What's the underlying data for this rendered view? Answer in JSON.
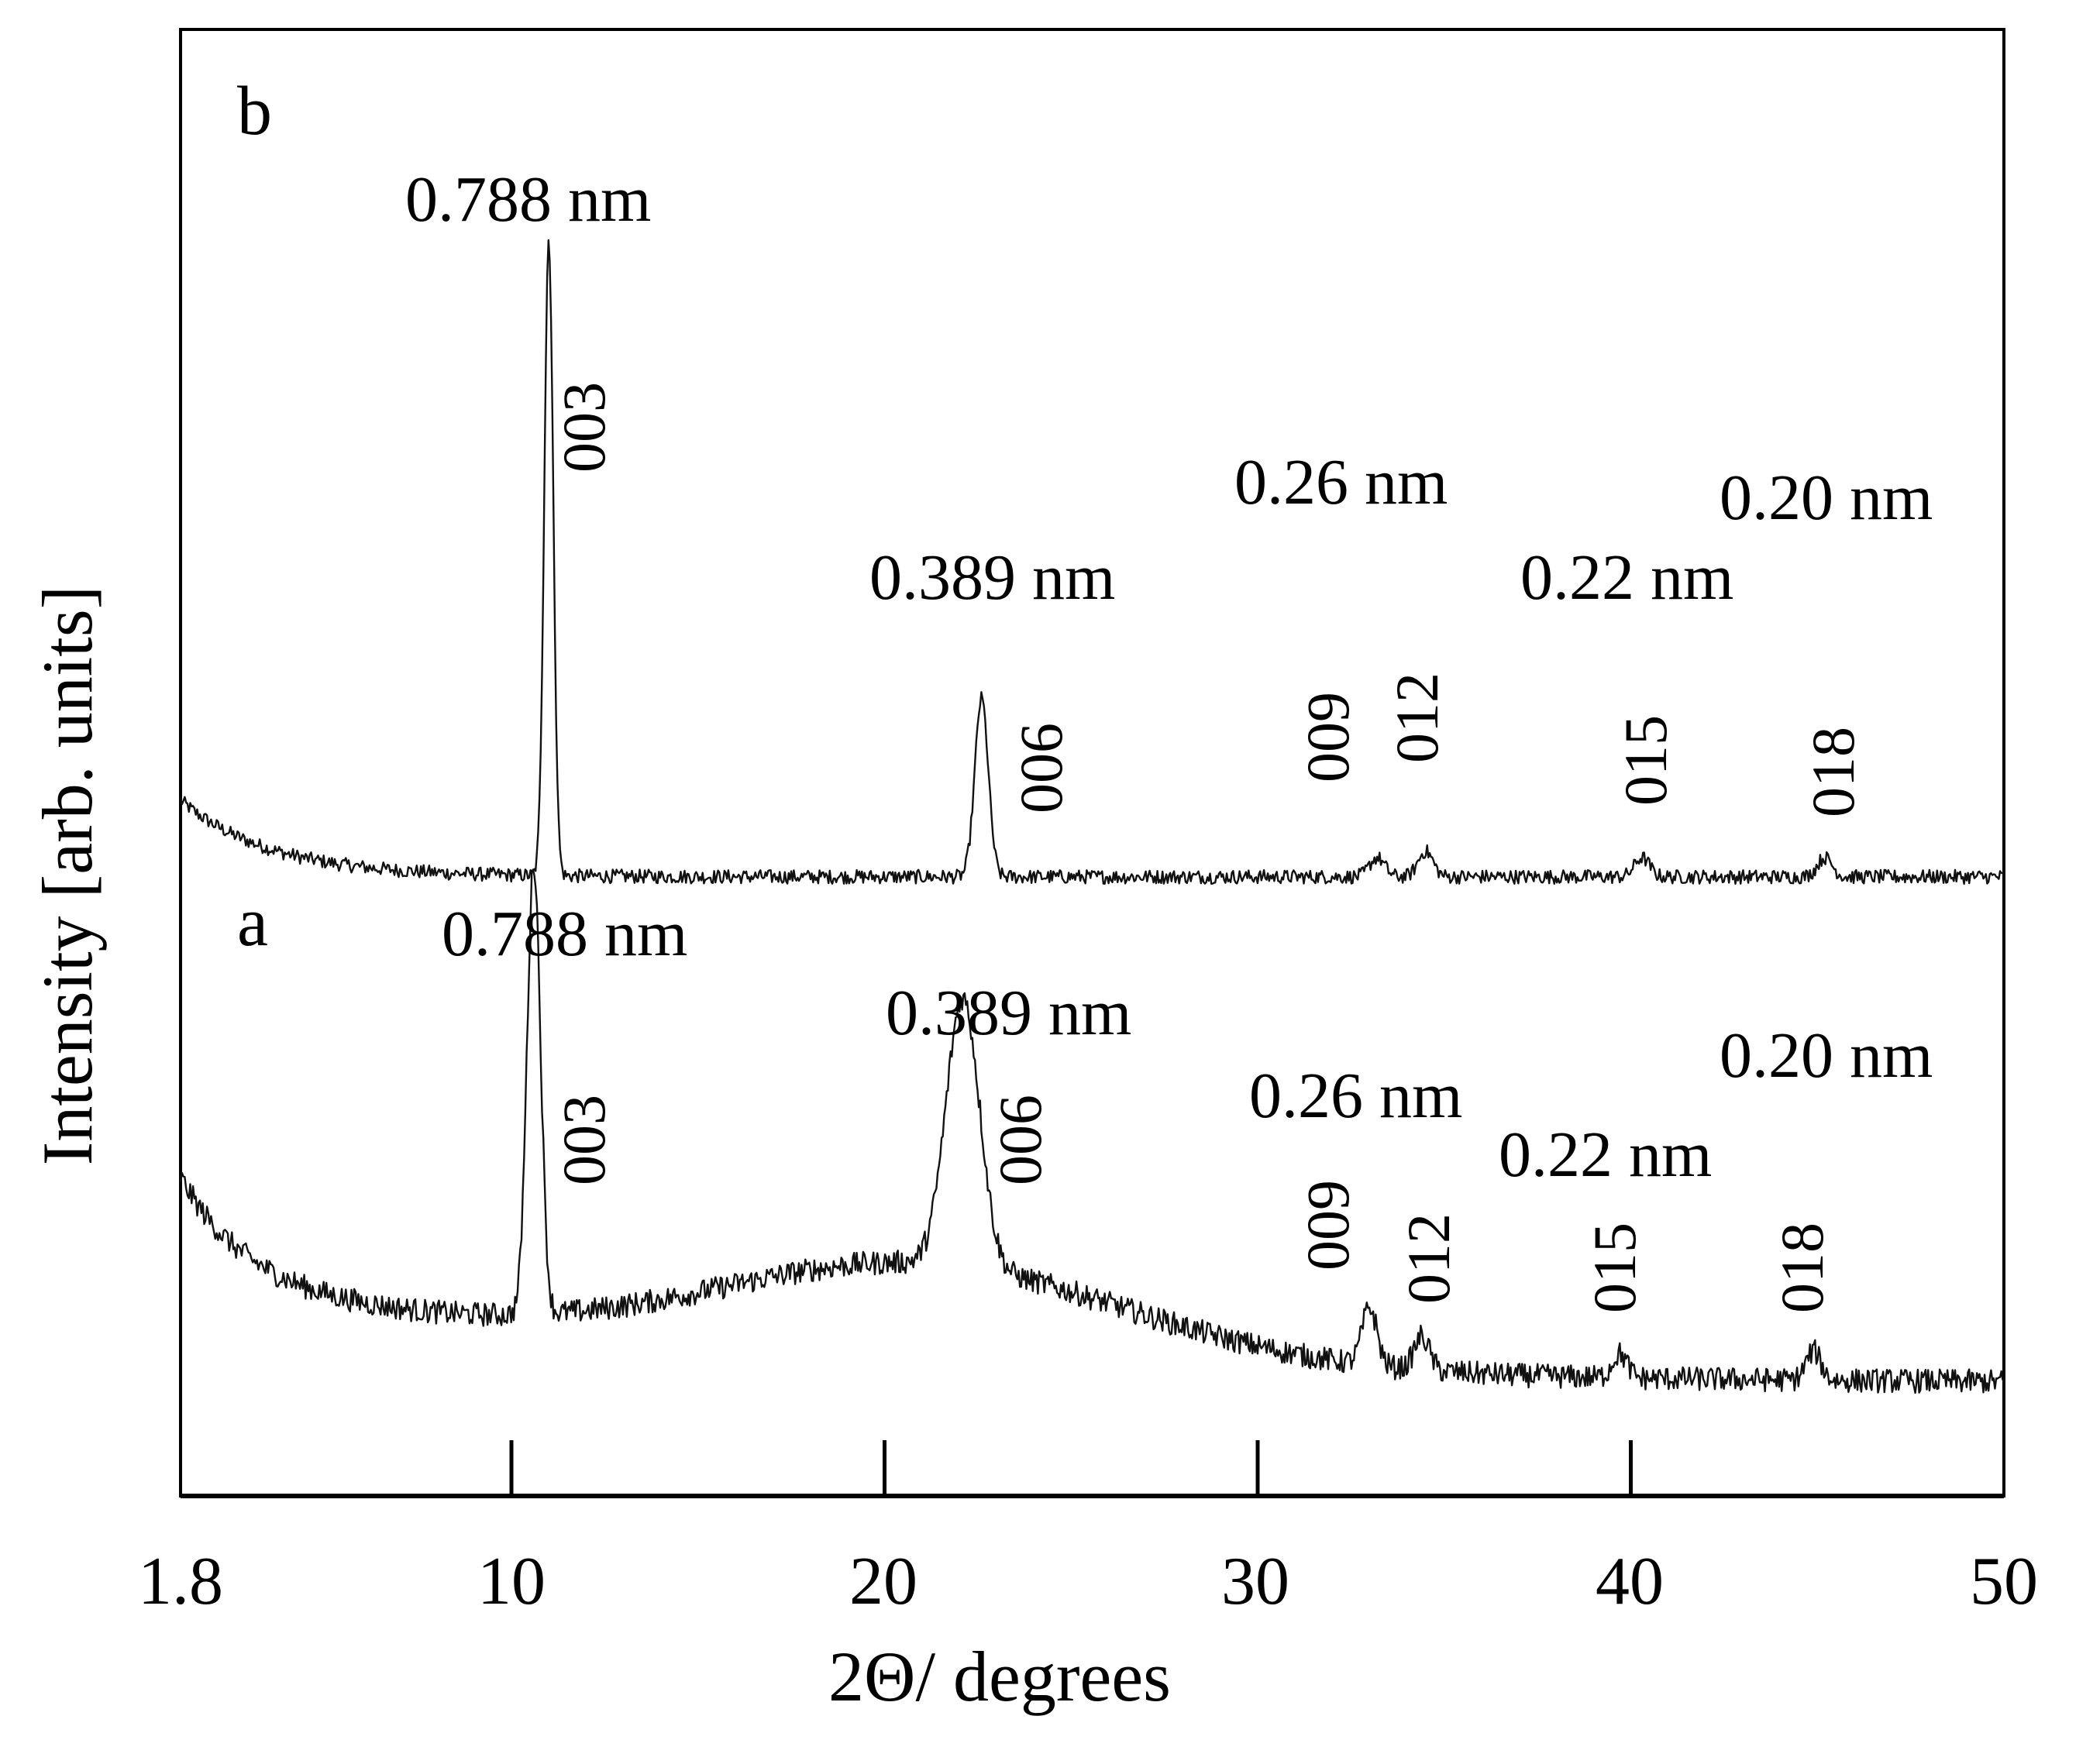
{
  "chart_data": {
    "type": "line",
    "title": "",
    "xlabel": "2Θ/ degrees",
    "ylabel": "Intensity [arb. units]",
    "xlim": [
      1.8,
      50
    ],
    "x_ticks": [
      {
        "value": 1.8,
        "label": "1.8"
      },
      {
        "value": 10,
        "label": "10"
      },
      {
        "value": 20,
        "label": "20"
      },
      {
        "value": 30,
        "label": "30"
      },
      {
        "value": 40,
        "label": "40"
      },
      {
        "value": 50,
        "label": "50"
      }
    ],
    "y_ticks_shown": false,
    "series": [
      {
        "name": "a",
        "panel_label": "a",
        "peaks": [
          {
            "x": 10.6,
            "height": 0.94,
            "width": 0.18,
            "hkl": "003",
            "d_label": "0.788 nm"
          },
          {
            "x": 22.1,
            "height": 0.56,
            "width": 0.45,
            "hkl": "006",
            "d_label": "0.389 nm"
          },
          {
            "x": 33.0,
            "height": 0.12,
            "width": 0.2,
            "hkl": "009",
            "d_label": "0.26 nm"
          },
          {
            "x": 34.4,
            "height": 0.07,
            "width": 0.2,
            "hkl": "012",
            "d_label": ""
          },
          {
            "x": 39.7,
            "height": 0.05,
            "width": 0.2,
            "hkl": "015",
            "d_label": "0.22 nm"
          },
          {
            "x": 44.9,
            "height": 0.06,
            "width": 0.2,
            "hkl": "018",
            "d_label": "0.20 nm"
          }
        ]
      },
      {
        "name": "b",
        "panel_label": "b",
        "peaks": [
          {
            "x": 11.0,
            "height": 1.0,
            "width": 0.12,
            "hkl": "003",
            "d_label": "0.788 nm"
          },
          {
            "x": 22.6,
            "height": 0.28,
            "width": 0.18,
            "hkl": "006",
            "d_label": "0.389 nm"
          },
          {
            "x": 33.2,
            "height": 0.03,
            "width": 0.2,
            "hkl": "009",
            "d_label": "0.26 nm"
          },
          {
            "x": 34.5,
            "height": 0.04,
            "width": 0.2,
            "hkl": "012",
            "d_label": ""
          },
          {
            "x": 40.3,
            "height": 0.03,
            "width": 0.2,
            "hkl": "015",
            "d_label": "0.22 nm"
          },
          {
            "x": 45.2,
            "height": 0.03,
            "width": 0.2,
            "hkl": "018",
            "d_label": "0.20 nm"
          }
        ]
      }
    ],
    "annotations": {
      "b_d_labels": [
        "0.788 nm",
        "0.389 nm",
        "0.26 nm",
        "0.22 nm",
        "0.20 nm"
      ],
      "a_d_labels": [
        "0.788 nm",
        "0.389 nm",
        "0.26 nm",
        "0.22 nm",
        "0.20 nm"
      ]
    }
  }
}
